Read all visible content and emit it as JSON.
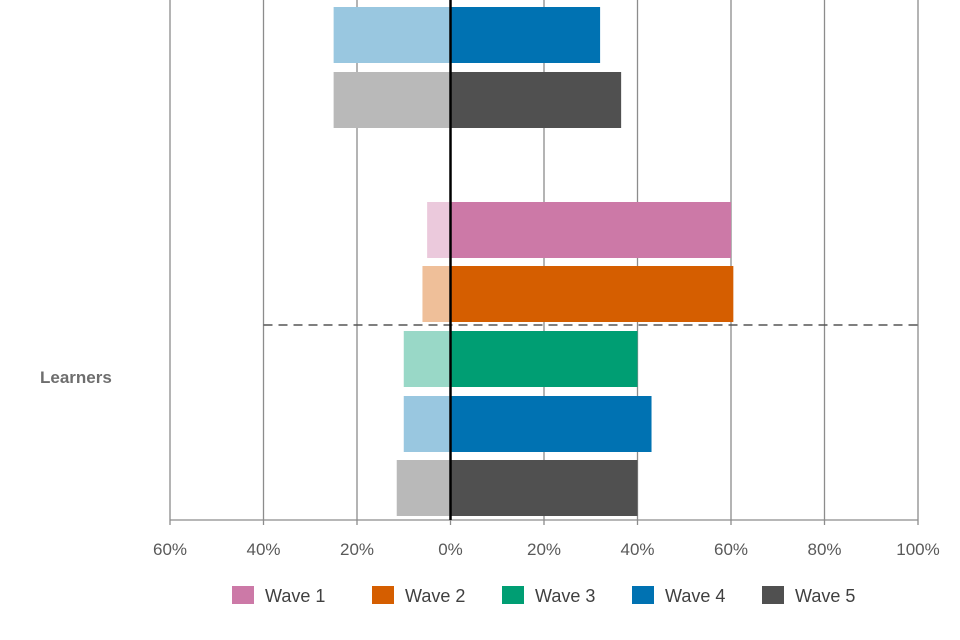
{
  "chart_data": {
    "type": "bar",
    "orientation": "horizontal",
    "diverging": true,
    "x_axis": {
      "min": -60,
      "max": 100,
      "ticks": [
        {
          "value": -60,
          "label": "60%"
        },
        {
          "value": -40,
          "label": "40%"
        },
        {
          "value": -20,
          "label": "20%"
        },
        {
          "value": 0,
          "label": "0%"
        },
        {
          "value": 20,
          "label": "20%"
        },
        {
          "value": 40,
          "label": "40%"
        },
        {
          "value": 60,
          "label": "60%"
        },
        {
          "value": 80,
          "label": "80%"
        },
        {
          "value": 100,
          "label": "100%"
        }
      ]
    },
    "grid": true,
    "series": [
      {
        "name": "Wave 1",
        "color": "#CC79A7",
        "light_color": "#EBC9DC"
      },
      {
        "name": "Wave 2",
        "color": "#D55E00",
        "light_color": "#EFBF99"
      },
      {
        "name": "Wave 3",
        "color": "#009E73",
        "light_color": "#99D8C7"
      },
      {
        "name": "Wave 4",
        "color": "#0072B2",
        "light_color": "#99C7E0"
      },
      {
        "name": "Wave 5",
        "color": "#505050",
        "light_color": "#B9B9B9"
      }
    ],
    "groups": [
      {
        "label": "",
        "bars": [
          {
            "series": "Wave 4",
            "negative": -25,
            "positive": 32
          },
          {
            "series": "Wave 5",
            "negative": -25,
            "positive": 36.5
          }
        ]
      },
      {
        "label": "Learners",
        "bars": [
          {
            "series": "Wave 1",
            "negative": -5,
            "positive": 60
          },
          {
            "series": "Wave 2",
            "negative": -6,
            "positive": 60.5
          },
          {
            "series": "Wave 3",
            "negative": -10,
            "positive": 40
          },
          {
            "series": "Wave 4",
            "negative": -10,
            "positive": 43
          },
          {
            "series": "Wave 5",
            "negative": -11.5,
            "positive": 40
          }
        ]
      }
    ],
    "legend": {
      "position": "bottom",
      "entries": [
        "Wave 1",
        "Wave 2",
        "Wave 3",
        "Wave 4",
        "Wave 5"
      ]
    },
    "colors": {
      "grid": "#8C8C8C",
      "axis": "#000000",
      "divider": "#555555"
    }
  }
}
